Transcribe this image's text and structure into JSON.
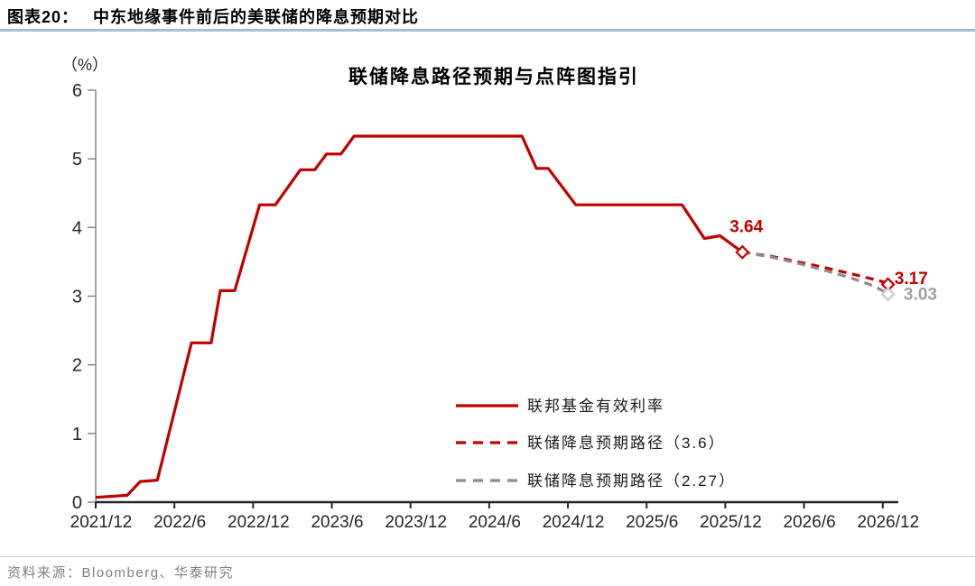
{
  "header": {
    "fig_label": "图表20：",
    "title": "中东地缘事件前后的美联储的降息预期对比"
  },
  "footer": {
    "source": "资料来源：Bloomberg、华泰研究"
  },
  "chart_data": {
    "type": "line",
    "title": "联储降息路径预期与点阵图指引",
    "unit_label": "（%）",
    "ylim": [
      0,
      6
    ],
    "yticks": [
      0,
      1,
      2,
      3,
      4,
      5,
      6
    ],
    "x_unit": "months_since_2021_12",
    "xtick_interval_months": 6,
    "xtick_labels": [
      "2021/12",
      "2022/6",
      "2022/12",
      "2023/6",
      "2023/12",
      "2024/6",
      "2024/12",
      "2025/6",
      "2025/12",
      "2026/6",
      "2026/12"
    ],
    "grid": false,
    "legend_position": "inside-bottom-center",
    "series": [
      {
        "name": "联邦基金有效利率",
        "line_style": "solid",
        "color": "#c00000",
        "marker_color": "#c00000",
        "end_marker": true,
        "points": [
          [
            0,
            0.07
          ],
          [
            2.4,
            0.1
          ],
          [
            3.4,
            0.3
          ],
          [
            4.7,
            0.32
          ],
          [
            7.3,
            2.32
          ],
          [
            8.8,
            2.32
          ],
          [
            9.5,
            3.08
          ],
          [
            10.6,
            3.08
          ],
          [
            12.5,
            4.33
          ],
          [
            13.7,
            4.33
          ],
          [
            15.6,
            4.84
          ],
          [
            16.7,
            4.84
          ],
          [
            17.6,
            5.07
          ],
          [
            18.7,
            5.07
          ],
          [
            19.7,
            5.33
          ],
          [
            32.5,
            5.33
          ],
          [
            33.6,
            4.86
          ],
          [
            34.5,
            4.86
          ],
          [
            36.6,
            4.33
          ],
          [
            44.7,
            4.33
          ],
          [
            46.4,
            3.84
          ],
          [
            47.6,
            3.88
          ],
          [
            49.3,
            3.64
          ]
        ]
      },
      {
        "name": "联储降息预期路径（3.6）",
        "line_style": "dashed",
        "color": "#c00000",
        "marker_color": "#c00000",
        "end_marker": true,
        "points": [
          [
            49.3,
            3.64
          ],
          [
            51.5,
            3.58
          ],
          [
            53.5,
            3.5
          ],
          [
            55.5,
            3.42
          ],
          [
            57.5,
            3.33
          ],
          [
            59.0,
            3.26
          ],
          [
            60.0,
            3.21
          ],
          [
            60.4,
            3.17
          ]
        ]
      },
      {
        "name": "联储降息预期路径（2.27）",
        "line_style": "dashed",
        "color": "#8c8c8c",
        "marker_color": "#c9c9c9",
        "end_marker": true,
        "points": [
          [
            49.3,
            3.64
          ],
          [
            51.5,
            3.57
          ],
          [
            53.5,
            3.48
          ],
          [
            55.5,
            3.38
          ],
          [
            57.5,
            3.27
          ],
          [
            59.0,
            3.17
          ],
          [
            60.0,
            3.08
          ],
          [
            60.4,
            3.03
          ]
        ]
      }
    ],
    "annotations": [
      {
        "text": "3.64",
        "m": 49.6,
        "v": 3.93,
        "anchor": "middle",
        "color": "#c00000"
      },
      {
        "text": "3.17",
        "m": 60.9,
        "v": 3.18,
        "anchor": "start",
        "color": "#c00000"
      },
      {
        "text": "3.03",
        "m": 61.6,
        "v": 2.95,
        "anchor": "start",
        "color": "#a0a0a0"
      }
    ],
    "style": {
      "axis_strong": "#262626",
      "axis_muted": "#808080",
      "tick_label_color": "#262626",
      "legend_text_color": "#1a1a1a",
      "title_color": "#000000"
    }
  }
}
